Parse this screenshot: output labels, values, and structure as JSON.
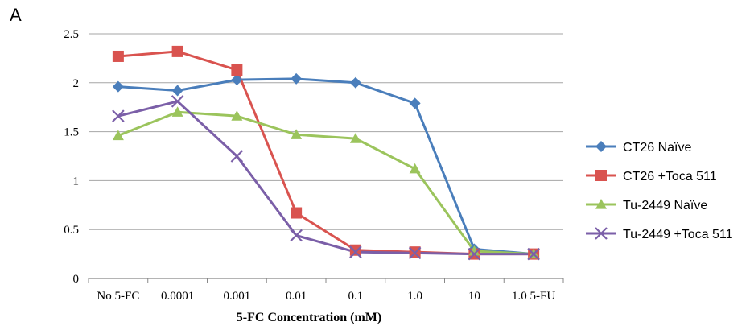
{
  "panel_label": "A",
  "chart_data": {
    "type": "line",
    "title": "",
    "xlabel": "5-FC Concentration (mM)",
    "ylabel": "",
    "categories": [
      "No 5-FC",
      "0.0001",
      "0.001",
      "0.01",
      "0.1",
      "1.0",
      "10",
      "1.0 5-FU"
    ],
    "ylim": [
      0,
      2.5
    ],
    "yticks": [
      "0",
      "0.5",
      "1",
      "1.5",
      "2",
      "2.5"
    ],
    "grid": true,
    "legend_position": "right",
    "series": [
      {
        "name": "CT26 Naïve",
        "color": "#4a7ebb",
        "marker": "diamond",
        "values": [
          1.96,
          1.92,
          2.03,
          2.04,
          2.0,
          1.79,
          0.3,
          0.25
        ]
      },
      {
        "name": "CT26 +Toca 511",
        "color": "#d9534f",
        "marker": "square",
        "values": [
          2.27,
          2.32,
          2.13,
          0.67,
          0.29,
          0.27,
          0.25,
          0.25
        ]
      },
      {
        "name": "Tu-2449 Naïve",
        "color": "#9bc45c",
        "marker": "triangle",
        "values": [
          1.46,
          1.7,
          1.66,
          1.47,
          1.43,
          1.12,
          0.28,
          0.25
        ]
      },
      {
        "name": "Tu-2449 +Toca 511",
        "color": "#7b5fa8",
        "marker": "x",
        "values": [
          1.66,
          1.81,
          1.25,
          0.44,
          0.27,
          0.26,
          0.25,
          0.25
        ]
      }
    ]
  }
}
